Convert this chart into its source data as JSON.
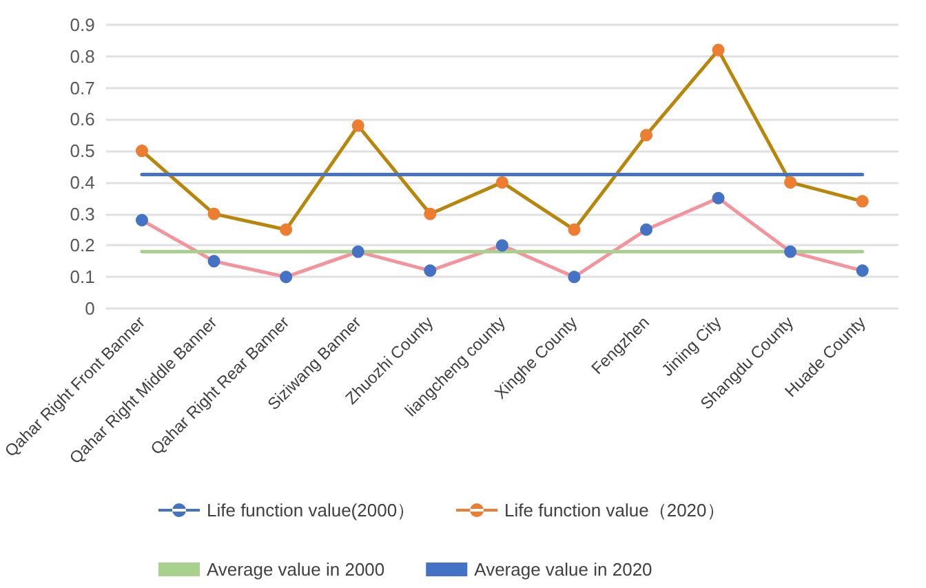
{
  "chart_data": {
    "type": "line",
    "categories": [
      "Qahar Right Front Banner",
      "Qahar Right Middle Banner",
      "Qahar Right Rear Banner",
      "Siziwang Banner",
      "Zhuozhi County",
      "liangcheng county",
      "Xinghe County",
      "Fengzhen",
      "Jining City",
      "Shangdu County",
      "Huade County"
    ],
    "series": [
      {
        "name": "Life function value(2000）",
        "color": "#f4939b",
        "colors": [
          "#4472c4",
          "#4472c4",
          "#4472c4",
          "#4472c4",
          "#4472c4",
          "#4472c4",
          "#4472c4",
          "#4472c4",
          "#4472c4",
          "#4472c4",
          "#4472c4"
        ],
        "marker": "circle",
        "values": [
          0.28,
          0.15,
          0.1,
          0.18,
          0.12,
          0.2,
          0.1,
          0.25,
          0.35,
          0.18,
          0.12
        ]
      },
      {
        "name": "Life function value（2020）",
        "color": "#b8860b",
        "colors": [
          "#ed7d31",
          "#ed7d31",
          "#ed7d31",
          "#ed7d31",
          "#ed7d31",
          "#ed7d31",
          "#ed7d31",
          "#ed7d31",
          "#ed7d31",
          "#ed7d31",
          "#ed7d31"
        ],
        "marker": "circle",
        "values": [
          0.5,
          0.3,
          0.25,
          0.58,
          0.3,
          0.4,
          0.25,
          0.55,
          0.82,
          0.4,
          0.34
        ]
      },
      {
        "name": "Average value in 2000",
        "color": "#a9d18e",
        "marker": "none",
        "values": [
          0.18,
          0.18,
          0.18,
          0.18,
          0.18,
          0.18,
          0.18,
          0.18,
          0.18,
          0.18,
          0.18
        ]
      },
      {
        "name": "Average value in 2020",
        "color": "#4472c4",
        "marker": "none",
        "values": [
          0.425,
          0.425,
          0.425,
          0.425,
          0.425,
          0.425,
          0.425,
          0.425,
          0.425,
          0.425,
          0.425
        ]
      }
    ],
    "ylim": [
      0,
      0.9
    ],
    "yticks": [
      0,
      0.1,
      0.2,
      0.3,
      0.4,
      0.5,
      0.6,
      0.7,
      0.8,
      0.9
    ],
    "grid": "y",
    "legend": "bottom"
  }
}
